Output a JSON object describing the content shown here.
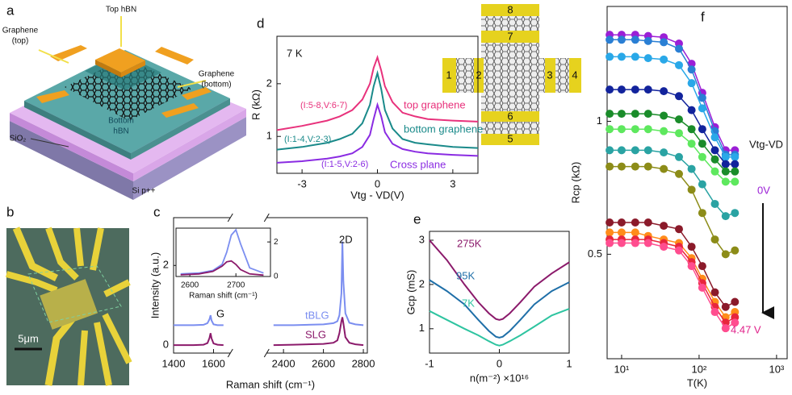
{
  "schematic": {
    "panel": "a",
    "top_hbn": "Top hBN",
    "graphene_top": [
      "Graphene",
      "(top)"
    ],
    "graphene_bottom": [
      "Graphene",
      "(bottom)"
    ],
    "bottom_hbn": [
      "Bottom",
      "hBN"
    ],
    "sio2": "SiO₂",
    "si": "Si p++"
  },
  "micrograph": {
    "panel": "b",
    "scale_bar": "5μm"
  },
  "device": {
    "pads": [
      "1",
      "2",
      "3",
      "4",
      "5",
      "6",
      "7",
      "8"
    ]
  },
  "chart_data": [
    {
      "type": "line",
      "panel": "c",
      "xlabel": "Raman shift (cm⁻¹)",
      "ylabel": "Intensity (a.u.)",
      "x": [
        1400,
        1500,
        1550,
        1570,
        1580,
        1585,
        1590,
        1600,
        1620,
        1650,
        2000,
        2350,
        2450,
        2600,
        2650,
        2670,
        2680,
        2690,
        2695,
        2700,
        2710,
        2730,
        2760,
        2800
      ],
      "xlim": [
        1400,
        2820
      ],
      "xbreak": [
        1660,
        2340
      ],
      "xticks": [
        1400,
        1600,
        2400,
        2600,
        2800
      ],
      "ylim": [
        -0.2,
        3.2
      ],
      "yticks": [
        0,
        2
      ],
      "series": [
        {
          "name": "tBLG",
          "color": "#7b8ef0",
          "values": [
            0.5,
            0.5,
            0.51,
            0.55,
            0.65,
            0.75,
            0.62,
            0.52,
            0.5,
            0.5,
            null,
            0.5,
            0.5,
            0.52,
            0.55,
            0.6,
            0.75,
            1.3,
            2.6,
            1.6,
            0.8,
            0.56,
            0.52,
            0.5
          ]
        },
        {
          "name": "SLG",
          "color": "#8b1a6b",
          "values": [
            0,
            0,
            0.01,
            0.05,
            0.18,
            0.3,
            0.17,
            0.04,
            0.01,
            0,
            null,
            0,
            0.01,
            0.03,
            0.06,
            0.12,
            0.3,
            0.6,
            0.7,
            0.55,
            0.2,
            0.06,
            0.02,
            0
          ]
        }
      ],
      "annotations": [
        "G",
        "2D"
      ],
      "inset": {
        "xlabel": "Raman shift (cm⁻¹)",
        "x": [
          2580,
          2620,
          2650,
          2670,
          2680,
          2690,
          2700,
          2710,
          2730,
          2760
        ],
        "xlim": [
          2570,
          2775
        ],
        "xticks": [
          2600,
          2700
        ],
        "ylim": [
          0,
          2.8
        ],
        "yticks": [
          0,
          2
        ],
        "series": [
          {
            "color": "#7b8ef0",
            "values": [
              0.15,
              0.2,
              0.35,
              0.7,
              1.4,
              2.4,
              2.7,
              1.9,
              0.5,
              0.2
            ]
          },
          {
            "color": "#8b1a6b",
            "values": [
              0.1,
              0.15,
              0.3,
              0.6,
              0.85,
              0.9,
              0.7,
              0.4,
              0.15,
              0.08
            ]
          }
        ]
      }
    },
    {
      "type": "line",
      "panel": "d",
      "xlabel": "Vtg - VD(V)",
      "ylabel": "R (kΩ)",
      "x": [
        -4,
        -3,
        -2,
        -1.5,
        -1,
        -0.6,
        -0.3,
        -0.15,
        0,
        0.15,
        0.3,
        0.6,
        1,
        1.5,
        2,
        3,
        4
      ],
      "xlim": [
        -4,
        4
      ],
      "xticks": [
        -3,
        0,
        3
      ],
      "ylim": [
        0.3,
        2.9
      ],
      "yticks": [
        1,
        2
      ],
      "series": [
        {
          "name": "top graphene",
          "color": "#e8327c",
          "values": [
            1.12,
            1.2,
            1.3,
            1.38,
            1.5,
            1.7,
            2.0,
            2.3,
            2.5,
            2.25,
            1.95,
            1.65,
            1.45,
            1.38,
            1.33,
            1.3,
            1.28
          ]
        },
        {
          "name": "bottom graphene",
          "color": "#1a8a8a",
          "values": [
            0.75,
            0.8,
            0.88,
            0.95,
            1.05,
            1.25,
            1.6,
            1.95,
            2.2,
            1.9,
            1.5,
            1.15,
            0.95,
            0.88,
            0.85,
            0.8,
            0.78
          ]
        },
        {
          "name": "Cross plane",
          "color": "#8a2be2",
          "values": [
            0.5,
            0.53,
            0.58,
            0.62,
            0.68,
            0.8,
            1.03,
            1.33,
            1.6,
            1.38,
            1.08,
            0.86,
            0.76,
            0.71,
            0.68,
            0.65,
            0.63
          ]
        }
      ],
      "annotations": [
        "7 K",
        "(I:5-8,V:6-7)",
        "(I:1-4,V:2-3)",
        "(I:1-5,V:2-6)"
      ]
    },
    {
      "type": "line",
      "panel": "e",
      "xlabel": "n(m⁻²) ×10¹⁶",
      "ylabel": "Gcp (mS)",
      "x": [
        -1,
        -0.75,
        -0.5,
        -0.3,
        -0.15,
        -0.05,
        0,
        0.05,
        0.15,
        0.3,
        0.5,
        0.75,
        1
      ],
      "xlim": [
        -1,
        1
      ],
      "xticks": [
        -1,
        0,
        1
      ],
      "ylim": [
        0.45,
        3.2
      ],
      "yticks": [
        1,
        2,
        3
      ],
      "series": [
        {
          "name": "275K",
          "color": "#8b1a6b",
          "values": [
            3.0,
            2.55,
            2.0,
            1.6,
            1.35,
            1.22,
            1.2,
            1.22,
            1.35,
            1.6,
            1.95,
            2.25,
            2.5
          ]
        },
        {
          "name": "95K",
          "color": "#1f6fa8",
          "values": [
            2.1,
            1.85,
            1.55,
            1.2,
            0.95,
            0.82,
            0.8,
            0.82,
            0.95,
            1.2,
            1.55,
            1.85,
            2.05
          ]
        },
        {
          "name": "7K",
          "color": "#2ec4a0",
          "values": [
            1.4,
            1.2,
            1.0,
            0.85,
            0.72,
            0.64,
            0.62,
            0.64,
            0.72,
            0.85,
            1.05,
            1.3,
            1.45
          ]
        }
      ]
    },
    {
      "type": "line",
      "panel": "f",
      "xlabel": "T(K)",
      "ylabel": "Rcp (kΩ)",
      "xlog": true,
      "ylog": true,
      "markers": true,
      "x": [
        7,
        10,
        15,
        22,
        35,
        55,
        80,
        110,
        160,
        220,
        290
      ],
      "xlim": [
        6.5,
        1370
      ],
      "xticks": [
        {
          "value": 10,
          "label": "10¹"
        },
        {
          "value": 100,
          "label": "10²"
        },
        {
          "value": 1000,
          "label": "10³"
        }
      ],
      "ylim": [
        0.29,
        1.82
      ],
      "yticks": [
        0.5,
        1
      ],
      "series": [
        {
          "color": "#9b1fd6",
          "values": [
            1.57,
            1.57,
            1.57,
            1.56,
            1.55,
            1.5,
            1.35,
            1.16,
            0.97,
            0.86,
            0.86
          ]
        },
        {
          "color": "#2a7fd4",
          "values": [
            1.53,
            1.53,
            1.53,
            1.52,
            1.51,
            1.46,
            1.31,
            1.13,
            0.95,
            0.84,
            0.84
          ]
        },
        {
          "color": "#29a8e8",
          "values": [
            1.4,
            1.4,
            1.4,
            1.39,
            1.38,
            1.34,
            1.22,
            1.07,
            0.92,
            0.83,
            0.83
          ]
        },
        {
          "color": "#12239c",
          "values": [
            1.18,
            1.18,
            1.18,
            1.18,
            1.17,
            1.14,
            1.06,
            0.96,
            0.86,
            0.8,
            0.8
          ]
        },
        {
          "color": "#1a8c2a",
          "values": [
            1.04,
            1.04,
            1.04,
            1.04,
            1.03,
            1.01,
            0.96,
            0.89,
            0.82,
            0.77,
            0.77
          ]
        },
        {
          "color": "#5ee85e",
          "values": [
            0.96,
            0.96,
            0.96,
            0.96,
            0.95,
            0.94,
            0.89,
            0.83,
            0.77,
            0.73,
            0.73
          ]
        },
        {
          "color": "#2aa3a3",
          "values": [
            0.86,
            0.86,
            0.86,
            0.86,
            0.85,
            0.83,
            0.78,
            0.72,
            0.65,
            0.61,
            0.62
          ]
        },
        {
          "color": "#8c8c18",
          "values": [
            0.79,
            0.79,
            0.79,
            0.79,
            0.78,
            0.76,
            0.7,
            0.62,
            0.54,
            0.5,
            0.51
          ]
        },
        {
          "color": "#8b1a2a",
          "values": [
            0.59,
            0.59,
            0.59,
            0.59,
            0.58,
            0.57,
            0.52,
            0.47,
            0.41,
            0.38,
            0.39
          ]
        },
        {
          "color": "#ff8c1a",
          "values": [
            0.56,
            0.56,
            0.56,
            0.55,
            0.54,
            0.53,
            0.49,
            0.44,
            0.39,
            0.36,
            0.37
          ]
        },
        {
          "color": "#e8263c",
          "values": [
            0.54,
            0.54,
            0.54,
            0.54,
            0.53,
            0.52,
            0.48,
            0.43,
            0.38,
            0.35,
            0.36
          ]
        },
        {
          "color": "#ff4d8f",
          "values": [
            0.53,
            0.53,
            0.53,
            0.53,
            0.52,
            0.51,
            0.47,
            0.42,
            0.37,
            0.34,
            0.35
          ]
        }
      ],
      "annotations": [
        "Vtg-VD",
        "0V",
        "4.47 V"
      ]
    }
  ]
}
